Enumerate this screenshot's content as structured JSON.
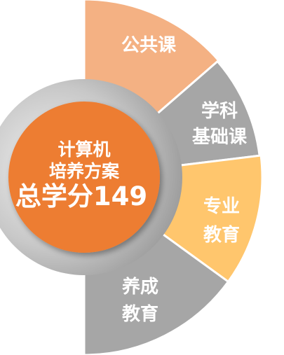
{
  "center": {
    "line1": "计算机",
    "line2": "培养方案",
    "line3": "总学分149",
    "color": "#ED7D31"
  },
  "segments": [
    {
      "id": "public",
      "lines": [
        "公共课"
      ],
      "color": "#F4B183"
    },
    {
      "id": "foundation",
      "lines": [
        "学科",
        "基础课"
      ],
      "color": "#A6A6A6"
    },
    {
      "id": "major",
      "lines": [
        "专业",
        "教育"
      ],
      "color": "#FFC66D"
    },
    {
      "id": "cultivation",
      "lines": [
        "养成",
        "教育"
      ],
      "color": "#A6A6A6"
    }
  ],
  "colors": {
    "separator": "#ffffff",
    "hub_gradient_light": "#E0E0E0",
    "hub_gradient_dark": "#9A9A9A"
  }
}
